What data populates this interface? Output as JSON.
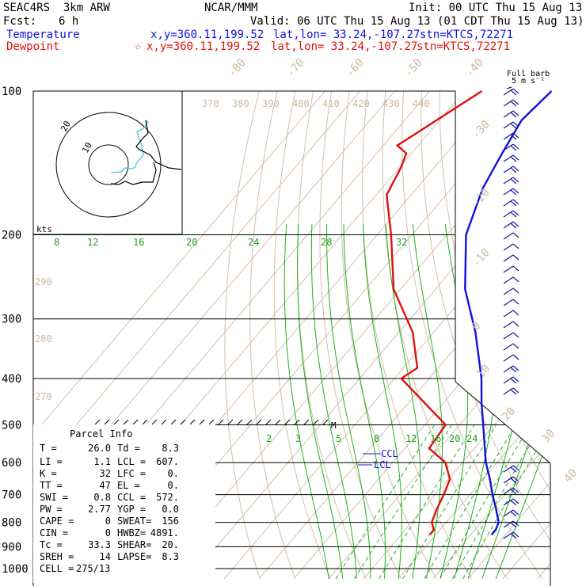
{
  "header": {
    "model": "SEAC4RS  3km ARW",
    "org": "NCAR/MMM",
    "init": "Init: 00 UTC Thu 15 Aug 13",
    "fcst_label": "Fcst:",
    "fcst_value": "6 h",
    "valid": "Valid: 06 UTC Thu 15 Aug 13 (01 CDT Thu 15 Aug 13)"
  },
  "legend": {
    "temperature": {
      "label": "Temperature",
      "xy": "x,y=360.11,199.52",
      "latlon": "lat,lon= 33.24,-107.27",
      "stn": "stn=KTCS,72271",
      "color": "#1010e0"
    },
    "dewpoint": {
      "label": "Dewpoint",
      "marker": "☆",
      "xy": "x,y=360.11,199.52",
      "latlon": "lat,lon= 33.24,-107.27",
      "stn": "stn=KTCS,72271",
      "color": "#e01010"
    }
  },
  "barb_key": {
    "line1": "Full barb",
    "line2": "5 m s⁻¹"
  },
  "hodograph": {
    "kts_label": "kts",
    "ring_labels": [
      "20",
      "10"
    ]
  },
  "parcel": {
    "title": "Parcel Info",
    "rows": [
      [
        "T  =",
        "26.0",
        "Td =",
        "8.3"
      ],
      [
        "LI =",
        "1.1",
        "LCL =",
        "607."
      ],
      [
        "K  =",
        "32",
        "LFC =",
        "0."
      ],
      [
        "TT =",
        "47",
        "EL  =",
        "0."
      ],
      [
        "SWI =",
        "0.8",
        "CCL =",
        "572."
      ],
      [
        "PW =",
        "2.77",
        "YGP =",
        "0.0"
      ],
      [
        "CAPE =",
        "0",
        "SWEAT=",
        "156"
      ],
      [
        "CIN =",
        "0",
        "HWBZ=",
        "4891."
      ],
      [
        "Tc =",
        "33.3",
        "SHEAR=",
        "20."
      ],
      [
        "SREH =",
        "14",
        "LAPSE=",
        "8.3"
      ],
      [
        "CELL =",
        "275/13",
        "",
        ""
      ]
    ]
  },
  "annotations": {
    "ccl": "CCL",
    "lcl": "LCL",
    "m_mark": "M"
  },
  "chart_data": {
    "type": "line",
    "title": "",
    "y_axis": "pressure (hPa), log scale",
    "pressure_levels": [
      100,
      200,
      300,
      400,
      500,
      600,
      700,
      800,
      900,
      1000
    ],
    "ylim": [
      1000,
      100
    ],
    "isotherm_labels": [
      "-80",
      "-70",
      "-60",
      "-50",
      "-40",
      "-30",
      "-20",
      "-10",
      "0",
      "10",
      "20",
      "30",
      "40"
    ],
    "theta_labels": [
      "370",
      "380",
      "390",
      "400",
      "410",
      "420",
      "430",
      "440"
    ],
    "theta_low_labels": [
      "290",
      "280",
      "270"
    ],
    "moist_adiabat_labels": [
      "8",
      "12",
      "16",
      "20",
      "24",
      "28",
      "32"
    ],
    "mixing_ratio_labels": [
      "2",
      "3",
      "5",
      "8",
      "12",
      "16",
      "20",
      "24"
    ],
    "grid": true,
    "colors": {
      "temperature": "#1010e0",
      "dewpoint": "#e01010",
      "dry_adiabat": "#d2c0a8",
      "moist_adiabat": "#20b020",
      "isotherm": "#d2c0a8",
      "isobar": "#000000"
    },
    "series": [
      {
        "name": "Temperature",
        "pressure": [
          100,
          115,
          135,
          160,
          200,
          260,
          320,
          400,
          450,
          500,
          550,
          600,
          650,
          700,
          750,
          800,
          830,
          850
        ],
        "values": [
          -65.0,
          -66.5,
          -64.0,
          -61.0,
          -54.5,
          -41.5,
          -28.0,
          -15.0,
          -9.0,
          -3.2,
          2.0,
          6.8,
          12.0,
          16.5,
          21.0,
          25.0,
          26.0,
          26.0
        ]
      },
      {
        "name": "Dewpoint",
        "pressure": [
          100,
          130,
          135,
          145,
          165,
          200,
          260,
          320,
          380,
          400,
          500,
          560,
          600,
          650,
          700,
          750,
          800,
          830,
          850
        ],
        "values": [
          -85.0,
          -96.0,
          -91.5,
          -89.5,
          -87.0,
          -76.0,
          -62.0,
          -46.0,
          -36.0,
          -38.0,
          -14.0,
          -13.0,
          -4.8,
          0.5,
          2.5,
          4.0,
          5.8,
          8.3,
          8.3
        ]
      }
    ]
  }
}
